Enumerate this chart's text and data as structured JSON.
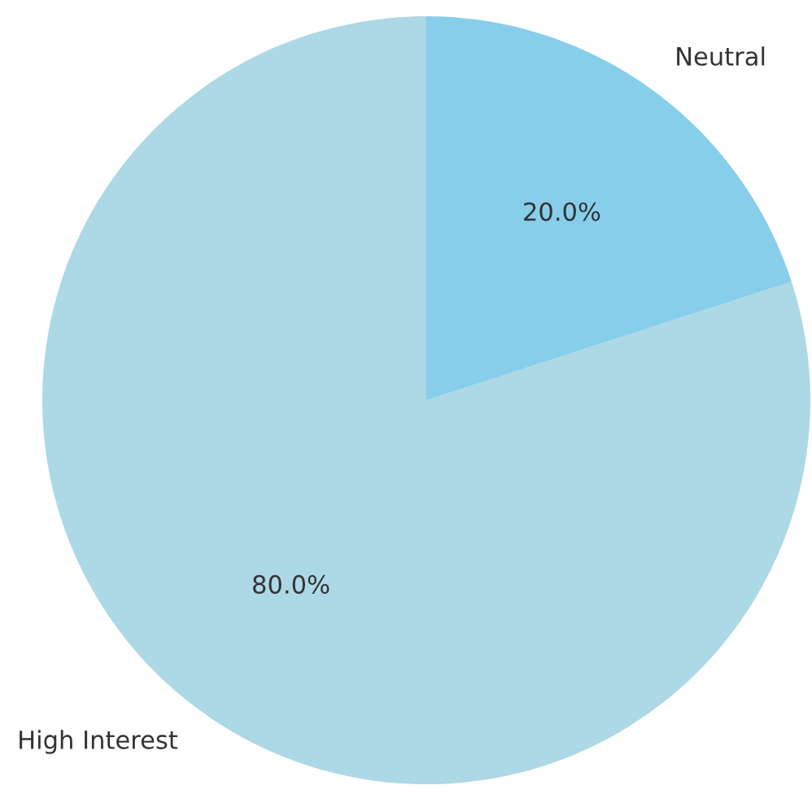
{
  "chart_data": {
    "type": "pie",
    "categories": [
      "High Interest",
      "Neutral"
    ],
    "values": [
      80,
      20
    ],
    "colors": [
      "#add8e6",
      "#87ceeb"
    ],
    "value_labels": [
      "80.0%",
      "20.0%"
    ]
  }
}
